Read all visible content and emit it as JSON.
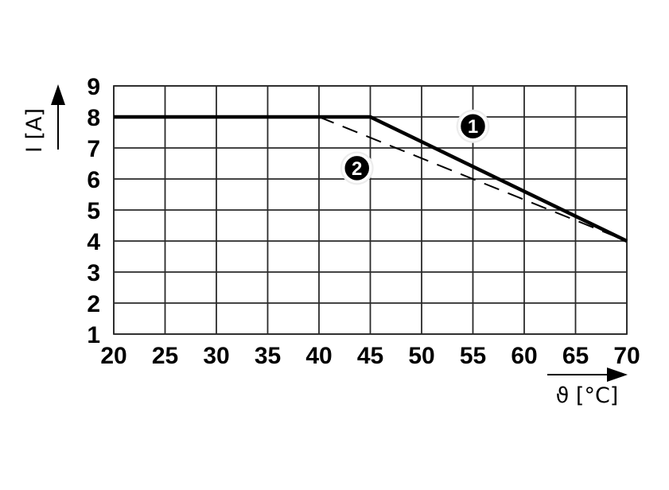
{
  "figure": {
    "background": "#ffffff",
    "curve_color": "#000000",
    "grid_color": "#2a2a2a",
    "marker_fill": "#000000",
    "marker_ring": "#ffffff",
    "marker_text_color": "#ffffff"
  },
  "chart_data": {
    "type": "line",
    "title": "",
    "xlabel": "ϑ [°C]",
    "ylabel": "I [A]",
    "xlim": [
      20,
      70
    ],
    "ylim": [
      1,
      9
    ],
    "x_ticks": [
      20,
      25,
      30,
      35,
      40,
      45,
      50,
      55,
      60,
      65,
      70
    ],
    "y_ticks": [
      1,
      2,
      3,
      4,
      5,
      6,
      7,
      8,
      9
    ],
    "grid": true,
    "legend_position": "none",
    "series": [
      {
        "name": "1",
        "style": "solid",
        "points": [
          [
            20,
            8
          ],
          [
            45,
            8
          ],
          [
            70,
            4
          ]
        ],
        "marker": {
          "x": 55,
          "y": 7.7,
          "text": "1"
        }
      },
      {
        "name": "2",
        "style": "dashed",
        "points": [
          [
            40,
            8
          ],
          [
            70,
            4
          ]
        ],
        "marker": {
          "x": 43.7,
          "y": 6.35,
          "text": "2"
        }
      }
    ]
  }
}
